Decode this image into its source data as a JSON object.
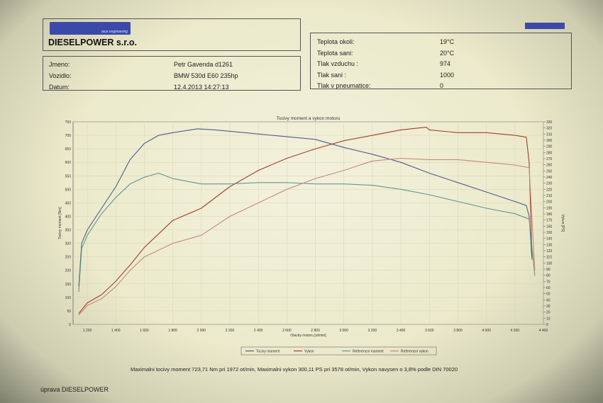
{
  "header": {
    "company": "DIESELPOWER s.r.o.",
    "logo_sub": "race engineering",
    "left_rows": [
      {
        "label": "Jmeno:",
        "value": "Petr Gavenda d1261"
      },
      {
        "label": "Vozidlo:",
        "value": "BMW 530d E60 235hp"
      },
      {
        "label": "Datum:",
        "value": "12.4.2013 14:27:13"
      }
    ],
    "right_rows": [
      {
        "label": "Teplota okoli:",
        "value": "19°C"
      },
      {
        "label": "Teplota sani:",
        "value": "20°C"
      },
      {
        "label": "Tlak vzduchu :",
        "value": "974"
      },
      {
        "label": "Tlak sani :",
        "value": "1000"
      },
      {
        "label": "Tlak v pneumatice:",
        "value": "0"
      }
    ]
  },
  "chart_data": {
    "type": "line",
    "title": "Tocivy moment a vykon motoru",
    "xlabel": "Otacky motoru [ot/min]",
    "ylabel_left": "Tocivy moment [Nm]",
    "ylabel_right": "Vykon [PS]",
    "xlim": [
      1100,
      4400
    ],
    "ylim_left": [
      0,
      750
    ],
    "ylim_right": [
      0,
      330
    ],
    "x_ticks": [
      "1 200",
      "1 400",
      "1 600",
      "1 800",
      "2 000",
      "2 200",
      "2 400",
      "2 600",
      "2 800",
      "3 000",
      "3 200",
      "3 400",
      "3 600",
      "3 800",
      "4 000",
      "4 200",
      "4 400"
    ],
    "y_left_ticks": [
      0,
      50,
      100,
      150,
      200,
      250,
      300,
      350,
      400,
      450,
      500,
      550,
      600,
      650,
      700,
      750
    ],
    "y_right_ticks": [
      0,
      10,
      20,
      30,
      40,
      50,
      60,
      70,
      80,
      90,
      100,
      110,
      120,
      130,
      140,
      150,
      160,
      170,
      180,
      190,
      200,
      210,
      220,
      230,
      240,
      250,
      260,
      270,
      280,
      290,
      300,
      310,
      320,
      330
    ],
    "grid": true,
    "legend_position": "bottom",
    "series": [
      {
        "name": "Tocivy moment",
        "axis": "left",
        "color": "#4c5f8a",
        "x": [
          1140,
          1160,
          1200,
          1300,
          1400,
          1500,
          1600,
          1700,
          1750,
          1800,
          1900,
          1972,
          2100,
          2400,
          2800,
          3000,
          3200,
          3400,
          3600,
          3800,
          4000,
          4200,
          4280,
          4300,
          4320
        ],
        "y": [
          140,
          300,
          350,
          430,
          510,
          610,
          670,
          700,
          705,
          710,
          718,
          724,
          720,
          705,
          685,
          655,
          630,
          600,
          560,
          525,
          490,
          455,
          440,
          400,
          240
        ]
      },
      {
        "name": "Vykon",
        "axis": "left",
        "color": "#a0402e",
        "x": [
          1140,
          1200,
          1300,
          1400,
          1500,
          1600,
          1700,
          1800,
          2000,
          2200,
          2400,
          2600,
          2800,
          3000,
          3200,
          3400,
          3578,
          3600,
          3800,
          4000,
          4200,
          4280,
          4300,
          4320
        ],
        "y": [
          40,
          80,
          110,
          160,
          220,
          285,
          335,
          385,
          430,
          510,
          570,
          615,
          650,
          680,
          700,
          720,
          730,
          720,
          710,
          710,
          700,
          693,
          600,
          250
        ]
      },
      {
        "name": "Referencni moment",
        "axis": "left",
        "color": "#5f9a8f",
        "x": [
          1140,
          1160,
          1200,
          1300,
          1400,
          1500,
          1600,
          1700,
          1800,
          1900,
          2000,
          2200,
          2400,
          2600,
          2800,
          3000,
          3200,
          3400,
          3600,
          3800,
          4000,
          4200,
          4300,
          4340
        ],
        "y": [
          120,
          280,
          330,
          410,
          470,
          520,
          545,
          560,
          540,
          530,
          520,
          520,
          525,
          525,
          520,
          520,
          515,
          500,
          480,
          455,
          430,
          410,
          390,
          180
        ]
      },
      {
        "name": "Referencni vykon",
        "axis": "left",
        "color": "#c48a7a",
        "x": [
          1140,
          1200,
          1300,
          1400,
          1500,
          1600,
          1800,
          2000,
          2200,
          2400,
          2600,
          2800,
          3000,
          3200,
          3400,
          3600,
          3800,
          4000,
          4200,
          4300,
          4340
        ],
        "y": [
          35,
          70,
          95,
          140,
          200,
          250,
          300,
          330,
          400,
          450,
          500,
          540,
          570,
          605,
          615,
          610,
          610,
          600,
          590,
          580,
          200
        ]
      }
    ]
  },
  "footer": {
    "summary": "Maximalni tocivy moment 723,71 Nm pri 1972 ot/min,  Maximalni vykon 300,11 PS pri 3578 ot/min,  Vykon navysen o 3,8% podle DIN 70020",
    "credit": "úprava DIESELPOWER"
  }
}
